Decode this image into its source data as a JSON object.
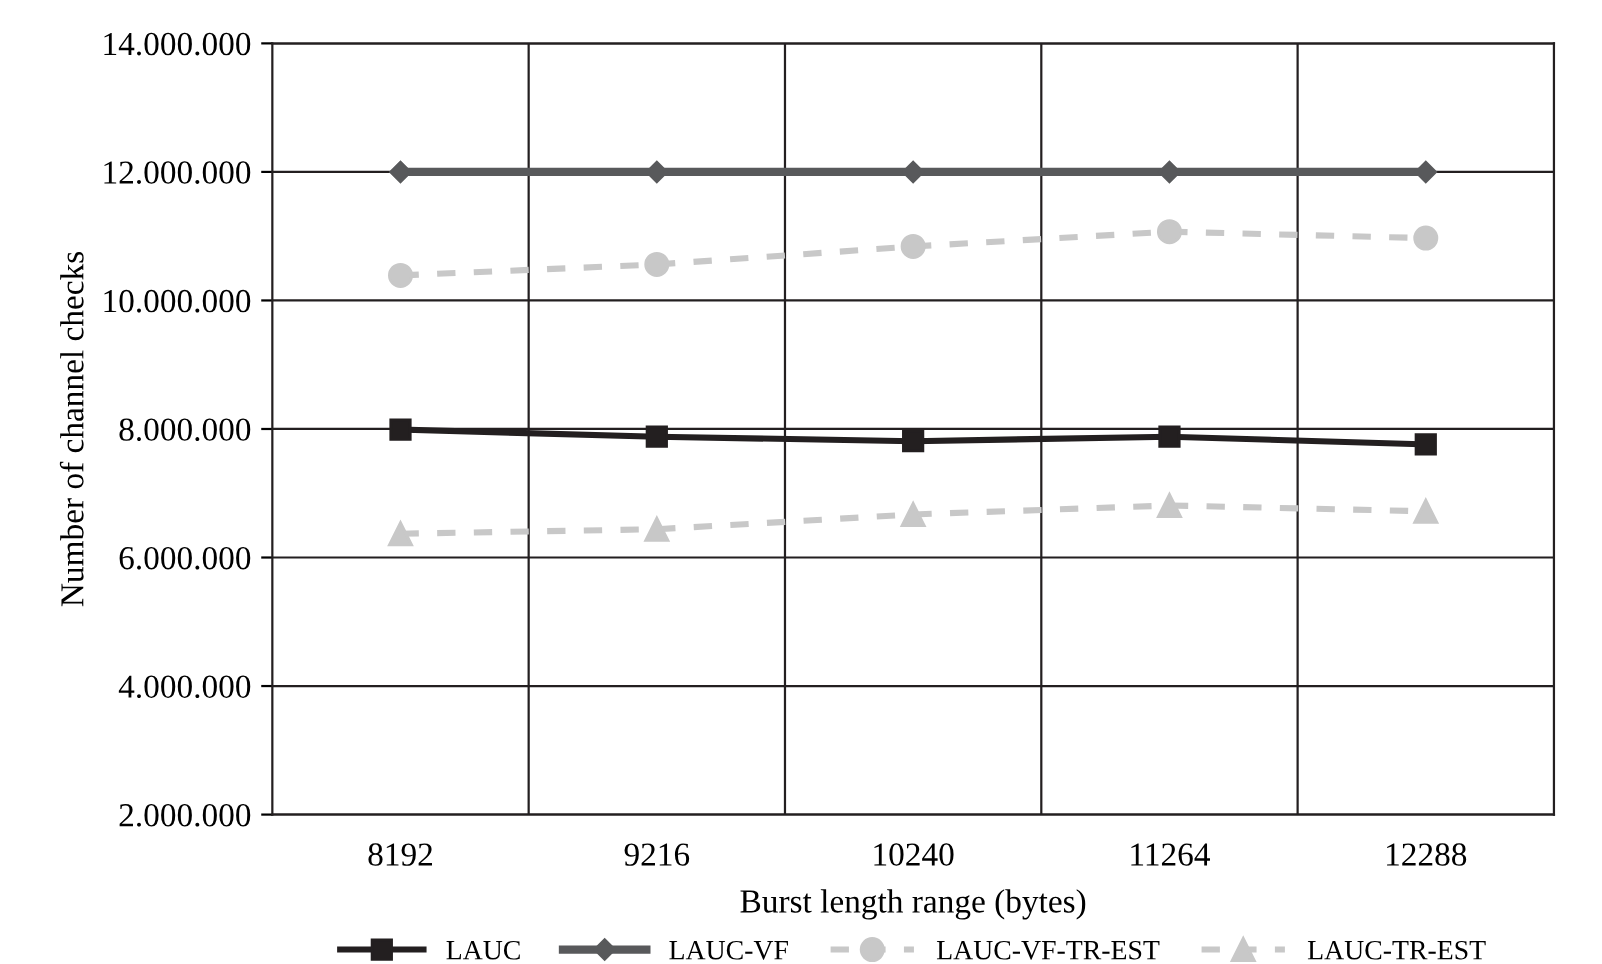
{
  "chart_data": {
    "type": "line",
    "xlabel": "Burst length range (bytes)",
    "ylabel": "Number of channel checks",
    "categories": [
      "8192",
      "9216",
      "10240",
      "11264",
      "12288"
    ],
    "series": [
      {
        "name": "LAUC",
        "color": "#231f20",
        "marker": "square",
        "line_style": "solid",
        "values": [
          7990000,
          7880000,
          7810000,
          7880000,
          7760000
        ]
      },
      {
        "name": "LAUC-VF",
        "color": "#58595b",
        "marker": "diamond",
        "line_style": "solid",
        "values": [
          12000000,
          12000000,
          12000000,
          12000000,
          12000000
        ]
      },
      {
        "name": "LAUC-VF-TR-EST",
        "color": "#c8c8c8",
        "marker": "circle",
        "line_style": "dashed",
        "values": [
          10390000,
          10560000,
          10840000,
          11070000,
          10970000
        ]
      },
      {
        "name": "LAUC-TR-EST",
        "color": "#c8c8c8",
        "marker": "triangle",
        "line_style": "dashed",
        "values": [
          6370000,
          6440000,
          6670000,
          6810000,
          6720000
        ]
      }
    ],
    "ylim": [
      2000000,
      14000000
    ],
    "yticks": [
      {
        "value": 2000000,
        "label": "2.000.000"
      },
      {
        "value": 4000000,
        "label": "4.000.000"
      },
      {
        "value": 6000000,
        "label": "6.000.000"
      },
      {
        "value": 8000000,
        "label": "8.000.000"
      },
      {
        "value": 10000000,
        "label": "10.000.000"
      },
      {
        "value": 12000000,
        "label": "12.000.000"
      },
      {
        "value": 14000000,
        "label": "14.000.000"
      }
    ],
    "grid": true,
    "legend": "bottom"
  }
}
